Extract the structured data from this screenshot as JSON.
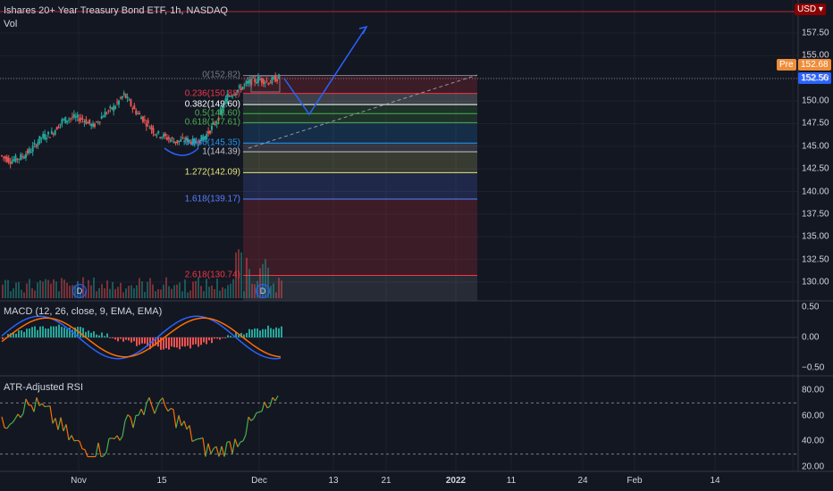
{
  "header": {
    "symbol_title": "Ishares 20+ Year Treasury Bond ETF, 1h, NASDAQ",
    "volume_label": "Vol",
    "currency": "USD"
  },
  "price_tags": {
    "pre_label": "Pre",
    "pre_value": "152.68",
    "last_value": "152.56",
    "pre_color": "#ef8d3b",
    "last_color": "#2962ff"
  },
  "price_axis": [
    "157.50",
    "155.00",
    "152.50",
    "150.00",
    "147.50",
    "145.00",
    "142.50",
    "140.00",
    "137.50",
    "135.00",
    "132.50",
    "130.00"
  ],
  "macd": {
    "label": "MACD (12, 26, close, 9, EMA, EMA)",
    "axis": [
      "0.50",
      "0.00",
      "−0.50"
    ]
  },
  "rsi": {
    "label": "ATR-Adjusted RSI",
    "axis": [
      "80.00",
      "60.00",
      "40.00",
      "20.00"
    ]
  },
  "time_axis": [
    {
      "label": "Nov",
      "bold": false
    },
    {
      "label": "15",
      "bold": false
    },
    {
      "label": "Dec",
      "bold": false
    },
    {
      "label": "13",
      "bold": false
    },
    {
      "label": "21",
      "bold": false
    },
    {
      "label": "2022",
      "bold": true
    },
    {
      "label": "11",
      "bold": false
    },
    {
      "label": "24",
      "bold": false
    },
    {
      "label": "Feb",
      "bold": false
    },
    {
      "label": "14",
      "bold": false
    }
  ],
  "events": [
    {
      "icon": "dividend-icon",
      "glyph": "D"
    },
    {
      "icon": "dividend-icon",
      "glyph": "D"
    }
  ],
  "fib_levels": [
    {
      "label": "0(152.82)",
      "price": 152.82,
      "color": "#787b86"
    },
    {
      "label": "0.236(150.83)",
      "price": 150.83,
      "color": "#f23645"
    },
    {
      "label": "0.382(149.60)",
      "price": 149.6,
      "color": "#ffffff"
    },
    {
      "label": "0.5(148.60)",
      "price": 148.6,
      "color": "#4caf50"
    },
    {
      "label": "0.618(147.61)",
      "price": 147.61,
      "color": "#4caf50"
    },
    {
      "label": "0.886(145.35)",
      "price": 145.35,
      "color": "#2196f3"
    },
    {
      "label": "1(144.39)",
      "price": 144.39,
      "color": "#c0c4cc"
    },
    {
      "label": "1.272(142.09)",
      "price": 142.09,
      "color": "#e6e67a"
    },
    {
      "label": "1.618(139.17)",
      "price": 139.17,
      "color": "#5b7cff"
    },
    {
      "label": "2.618(130.74)",
      "price": 130.74,
      "color": "#f23645"
    }
  ],
  "chart_data": {
    "type": "line",
    "title": "Ishares 20+ Year Treasury Bond ETF, 1h, NASDAQ",
    "price_range": [
      128.5,
      160.0
    ],
    "close_path": [
      [
        "2021-10-26",
        144.0
      ],
      [
        "2021-10-27",
        143.4
      ],
      [
        "2021-10-28",
        143.8
      ],
      [
        "2021-10-29",
        144.6
      ],
      [
        "2021-11-01",
        146.0
      ],
      [
        "2021-11-02",
        146.4
      ],
      [
        "2021-11-03",
        147.8
      ],
      [
        "2021-11-04",
        148.2
      ],
      [
        "2021-11-05",
        148.0
      ],
      [
        "2021-11-08",
        147.2
      ],
      [
        "2021-11-09",
        148.5
      ],
      [
        "2021-11-10",
        149.3
      ],
      [
        "2021-11-11",
        150.7
      ],
      [
        "2021-11-12",
        149.0
      ],
      [
        "2021-11-15",
        147.8
      ],
      [
        "2021-11-16",
        146.5
      ],
      [
        "2021-11-17",
        146.0
      ],
      [
        "2021-11-18",
        145.5
      ],
      [
        "2021-11-19",
        145.7
      ],
      [
        "2021-11-22",
        145.4
      ],
      [
        "2021-11-23",
        146.3
      ],
      [
        "2021-11-24",
        147.8
      ],
      [
        "2021-11-26",
        150.5
      ],
      [
        "2021-11-29",
        151.2
      ],
      [
        "2021-11-30",
        152.0
      ],
      [
        "2021-12-01",
        152.4
      ],
      [
        "2021-12-02",
        152.1
      ],
      [
        "2021-12-03",
        152.6
      ]
    ],
    "rsi_levels": [
      70,
      30
    ],
    "macd_range": [
      -0.6,
      0.6
    ]
  }
}
